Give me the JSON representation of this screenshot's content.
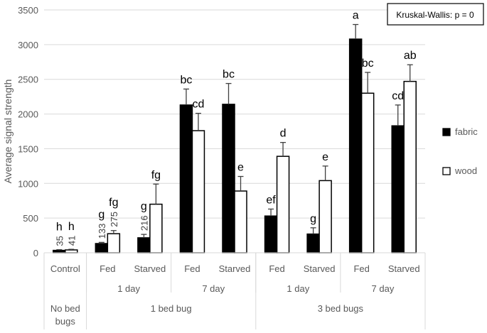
{
  "chart_data": {
    "type": "bar",
    "ylabel": "Average signal strength",
    "ylim": [
      0,
      3500
    ],
    "yticks": [
      0,
      500,
      1000,
      1500,
      2000,
      2500,
      3000,
      3500
    ],
    "grid": true,
    "legend_position": "right",
    "annotation": "Kruskal-Wallis: p = 0",
    "categories": [
      "Control",
      "Fed",
      "Starved",
      "Fed",
      "Starved",
      "Fed",
      "Starved",
      "Fed",
      "Starved"
    ],
    "group_level2": [
      {
        "label": "",
        "span": 1
      },
      {
        "label": "1 day",
        "span": 2
      },
      {
        "label": "7 day",
        "span": 2
      },
      {
        "label": "1 day",
        "span": 2
      },
      {
        "label": "7 day",
        "span": 2
      }
    ],
    "group_level3": [
      {
        "label": "No bed bugs",
        "span": 1
      },
      {
        "label": "1 bed bug",
        "span": 4
      },
      {
        "label": "3 bed bugs",
        "span": 4
      }
    ],
    "series": [
      {
        "name": "fabric",
        "color": "#000000",
        "values": [
          35,
          133,
          216,
          2130,
          2140,
          530,
          270,
          3080,
          1830
        ],
        "error_top": [
          45,
          150,
          265,
          2360,
          2440,
          630,
          360,
          3290,
          2130
        ],
        "letters": [
          "h",
          "g",
          "g",
          "bc",
          "bc",
          "ef",
          "g",
          "a",
          "cd"
        ],
        "value_labels": [
          "35",
          "133",
          "216",
          "",
          "",
          "",
          "",
          "",
          ""
        ]
      },
      {
        "name": "wood",
        "color": "#ffffff",
        "values": [
          41,
          275,
          700,
          1760,
          890,
          1390,
          1040,
          2300,
          2470
        ],
        "error_top": [
          50,
          320,
          990,
          2010,
          1100,
          1590,
          1250,
          2600,
          2710
        ],
        "letters": [
          "h",
          "fg",
          "fg",
          "cd",
          "e",
          "d",
          "e",
          "bc",
          "ab"
        ],
        "value_labels": [
          "41",
          "275",
          "",
          "",
          "",
          "",
          "",
          "",
          ""
        ]
      }
    ]
  }
}
